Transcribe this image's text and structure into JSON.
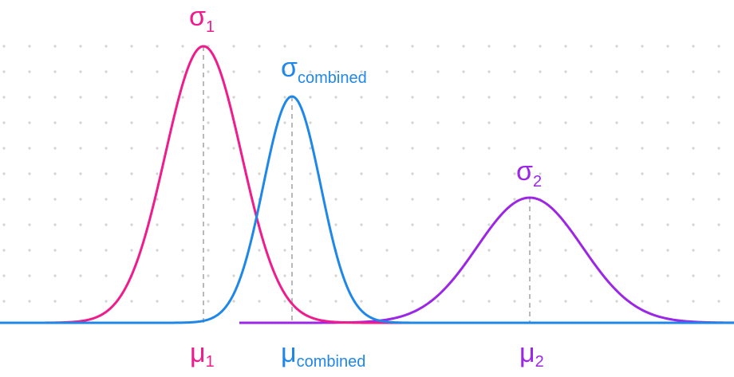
{
  "colors": {
    "curve1": "#ee1c8c",
    "combined": "#1f87e8",
    "curve2": "#9b26e6",
    "dashed": "#b9b9b9",
    "dots": "#d2d2d2"
  },
  "labels": {
    "sigma1": {
      "symbol": "σ",
      "sub": "1"
    },
    "sigma_combined": {
      "symbol": "σ",
      "sub": "combined"
    },
    "sigma2": {
      "symbol": "σ",
      "sub": "2"
    },
    "mu1": {
      "symbol": "μ",
      "sub": "1"
    },
    "mu_combined": {
      "symbol": "μ",
      "sub": "combined"
    },
    "mu2": {
      "symbol": "μ",
      "sub": "2"
    }
  }
}
